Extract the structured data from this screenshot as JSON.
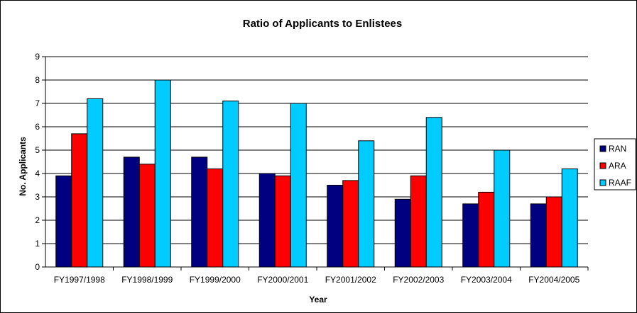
{
  "chart_data": {
    "type": "bar",
    "title": "Ratio of Applicants to Enlistees",
    "xlabel": "Year",
    "ylabel": "No. Applicants",
    "ylim": [
      0,
      9
    ],
    "yticks": [
      0,
      1,
      2,
      3,
      4,
      5,
      6,
      7,
      8,
      9
    ],
    "grid": true,
    "legend_position": "right",
    "categories": [
      "FY1997/1998",
      "FY1998/1999",
      "FY1999/2000",
      "FY2000/2001",
      "FY2001/2002",
      "FY2002/2003",
      "FY2003/2004",
      "FY2004/2005"
    ],
    "series": [
      {
        "name": "RAN",
        "color": "#000080",
        "values": [
          3.9,
          4.7,
          4.7,
          4.0,
          3.5,
          2.9,
          2.7,
          2.7
        ]
      },
      {
        "name": "ARA",
        "color": "#ff0000",
        "values": [
          5.7,
          4.4,
          4.2,
          3.9,
          3.7,
          3.9,
          3.2,
          3.0
        ]
      },
      {
        "name": "RAAF",
        "color": "#00ccff",
        "values": [
          7.2,
          8.0,
          7.1,
          7.0,
          5.4,
          6.4,
          5.0,
          4.2
        ]
      }
    ]
  }
}
